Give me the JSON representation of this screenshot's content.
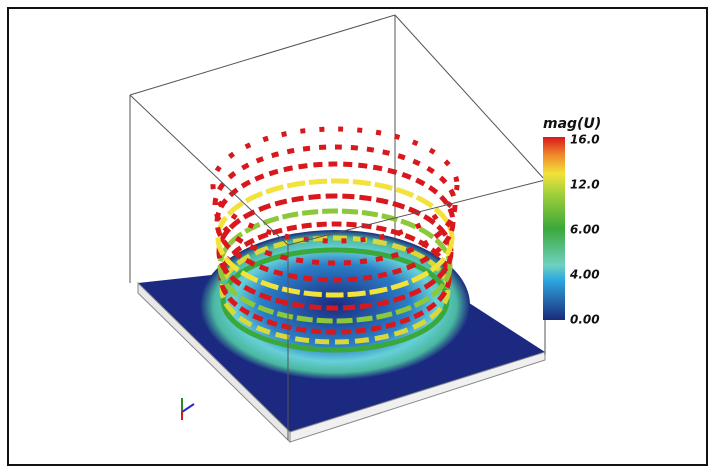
{
  "colorbar": {
    "title": "mag(U)",
    "ticks": [
      "16.0",
      "12.0",
      "6.00",
      "4.00",
      "0.00"
    ]
  }
}
